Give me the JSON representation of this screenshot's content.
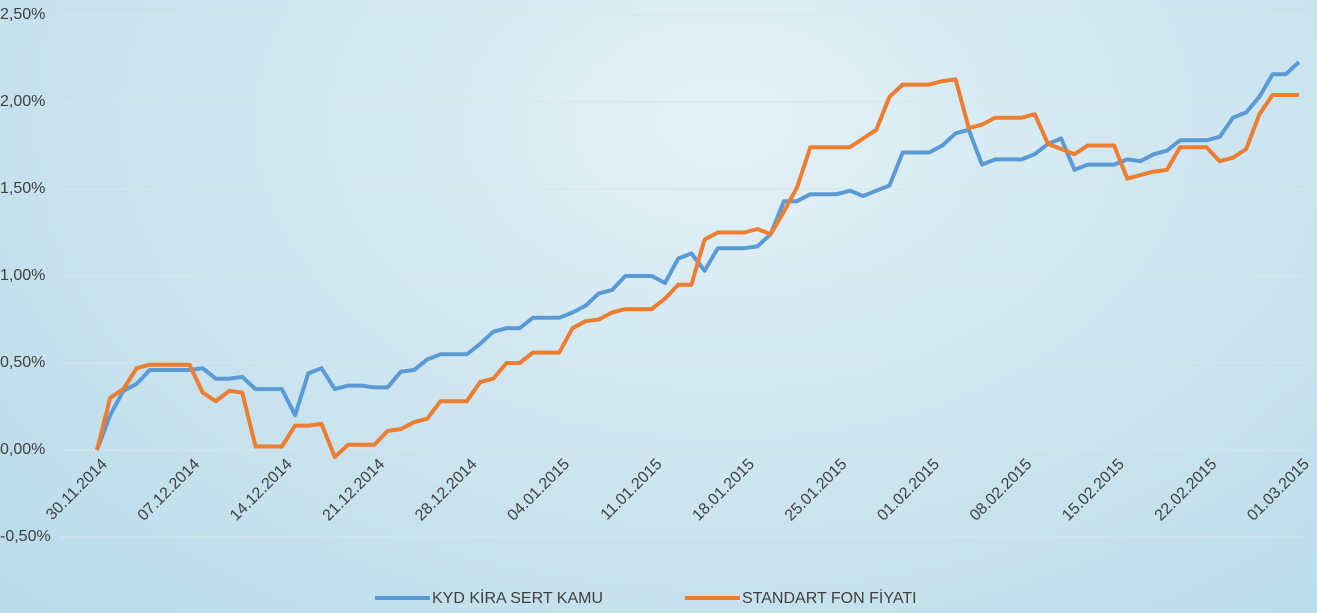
{
  "chart_data": {
    "type": "line",
    "categories": [
      "30.11.2014",
      null,
      null,
      null,
      null,
      null,
      null,
      "07.12.2014",
      null,
      null,
      null,
      null,
      null,
      null,
      "14.12.2014",
      null,
      null,
      null,
      null,
      null,
      null,
      "21.12.2014",
      null,
      null,
      null,
      null,
      null,
      null,
      "28.12.2014",
      null,
      null,
      null,
      null,
      null,
      null,
      "04.01.2015",
      null,
      null,
      null,
      null,
      null,
      null,
      "11.01.2015",
      null,
      null,
      null,
      null,
      null,
      null,
      "18.01.2015",
      null,
      null,
      null,
      null,
      null,
      null,
      "25.01.2015",
      null,
      null,
      null,
      null,
      null,
      null,
      "01.02.2015",
      null,
      null,
      null,
      null,
      null,
      null,
      "08.02.2015",
      null,
      null,
      null,
      null,
      null,
      null,
      "15.02.2015",
      null,
      null,
      null,
      null,
      null,
      null,
      "22.02.2015",
      null,
      null,
      null,
      null,
      null,
      null,
      "01.03.2015"
    ],
    "series": [
      {
        "name": "KYD KİRA SERT KAMU",
        "color": "#5b9bd5",
        "values": [
          0,
          0.2,
          0.34,
          0.38,
          0.46,
          0.46,
          0.46,
          0.46,
          0.47,
          0.41,
          0.41,
          0.42,
          0.35,
          0.35,
          0.35,
          0.2,
          0.44,
          0.47,
          0.35,
          0.37,
          0.37,
          0.36,
          0.36,
          0.45,
          0.46,
          0.52,
          0.55,
          0.55,
          0.55,
          0.61,
          0.68,
          0.7,
          0.7,
          0.76,
          0.76,
          0.76,
          0.79,
          0.83,
          0.9,
          0.92,
          1.0,
          1.0,
          1.0,
          0.96,
          1.1,
          1.13,
          1.03,
          1.16,
          1.16,
          1.16,
          1.17,
          1.24,
          1.43,
          1.43,
          1.47,
          1.47,
          1.47,
          1.49,
          1.46,
          1.49,
          1.52,
          1.71,
          1.71,
          1.71,
          1.75,
          1.82,
          1.84,
          1.64,
          1.67,
          1.67,
          1.67,
          1.7,
          1.76,
          1.79,
          1.61,
          1.64,
          1.64,
          1.64,
          1.67,
          1.66,
          1.7,
          1.72,
          1.78,
          1.78,
          1.78,
          1.8,
          1.91,
          1.94,
          2.03,
          2.16,
          2.16,
          2.23
        ]
      },
      {
        "name": "STANDART FON FİYATI",
        "color": "#ed7d31",
        "values": [
          0,
          0.3,
          0.35,
          0.47,
          0.49,
          0.49,
          0.49,
          0.49,
          0.33,
          0.28,
          0.34,
          0.33,
          0.02,
          0.02,
          0.02,
          0.14,
          0.14,
          0.15,
          -0.04,
          0.03,
          0.03,
          0.03,
          0.11,
          0.12,
          0.16,
          0.18,
          0.28,
          0.28,
          0.28,
          0.39,
          0.41,
          0.5,
          0.5,
          0.56,
          0.56,
          0.56,
          0.7,
          0.74,
          0.75,
          0.79,
          0.81,
          0.81,
          0.81,
          0.87,
          0.95,
          0.95,
          1.21,
          1.25,
          1.25,
          1.25,
          1.27,
          1.24,
          1.37,
          1.51,
          1.74,
          1.74,
          1.74,
          1.74,
          1.79,
          1.84,
          2.03,
          2.1,
          2.1,
          2.1,
          2.12,
          2.13,
          1.85,
          1.87,
          1.91,
          1.91,
          1.91,
          1.93,
          1.76,
          1.73,
          1.7,
          1.75,
          1.75,
          1.75,
          1.56,
          1.58,
          1.6,
          1.61,
          1.74,
          1.74,
          1.74,
          1.66,
          1.68,
          1.73,
          1.93,
          2.04,
          2.04,
          2.04
        ]
      }
    ],
    "ylim": [
      -0.5,
      2.5
    ],
    "yticks": [
      {
        "value": -0.5,
        "label": "-0,50%"
      },
      {
        "value": 0,
        "label": "0,00%"
      },
      {
        "value": 0.5,
        "label": "0,50%"
      },
      {
        "value": 1,
        "label": "1,00%"
      },
      {
        "value": 1.5,
        "label": "1,50%"
      },
      {
        "value": 2,
        "label": "2,00%"
      },
      {
        "value": 2.5,
        "label": "2,50%"
      }
    ],
    "grid": true,
    "legend": "bottom"
  }
}
